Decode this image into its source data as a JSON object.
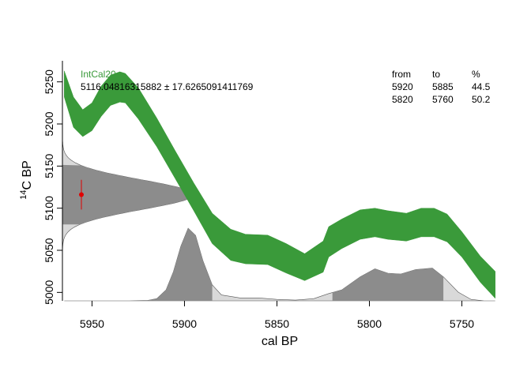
{
  "chart_data": {
    "type": "area",
    "calibration_curve": {
      "name": "IntCal20",
      "color": "#3a9a3a",
      "band_color": "#3a9a3a",
      "points": [
        {
          "x": 5965,
          "lo": 5232,
          "hi": 5263
        },
        {
          "x": 5960,
          "lo": 5196,
          "hi": 5232
        },
        {
          "x": 5955,
          "lo": 5185,
          "hi": 5217
        },
        {
          "x": 5950,
          "lo": 5192,
          "hi": 5225
        },
        {
          "x": 5945,
          "lo": 5209,
          "hi": 5245
        },
        {
          "x": 5940,
          "lo": 5222,
          "hi": 5258
        },
        {
          "x": 5935,
          "lo": 5226,
          "hi": 5262
        },
        {
          "x": 5932,
          "lo": 5225,
          "hi": 5260
        },
        {
          "x": 5925,
          "lo": 5206,
          "hi": 5243
        },
        {
          "x": 5915,
          "lo": 5173,
          "hi": 5207
        },
        {
          "x": 5905,
          "lo": 5135,
          "hi": 5168
        },
        {
          "x": 5895,
          "lo": 5097,
          "hi": 5130
        },
        {
          "x": 5885,
          "lo": 5058,
          "hi": 5094
        },
        {
          "x": 5875,
          "lo": 5038,
          "hi": 5075
        },
        {
          "x": 5867,
          "lo": 5034,
          "hi": 5069
        },
        {
          "x": 5855,
          "lo": 5033,
          "hi": 5068
        },
        {
          "x": 5845,
          "lo": 5023,
          "hi": 5058
        },
        {
          "x": 5835,
          "lo": 5014,
          "hi": 5046
        },
        {
          "x": 5825,
          "lo": 5024,
          "hi": 5061
        },
        {
          "x": 5822,
          "lo": 5042,
          "hi": 5078
        },
        {
          "x": 5815,
          "lo": 5052,
          "hi": 5087
        },
        {
          "x": 5805,
          "lo": 5063,
          "hi": 5098
        },
        {
          "x": 5797,
          "lo": 5066,
          "hi": 5100
        },
        {
          "x": 5790,
          "lo": 5063,
          "hi": 5097
        },
        {
          "x": 5780,
          "lo": 5061,
          "hi": 5094
        },
        {
          "x": 5772,
          "lo": 5066,
          "hi": 5100
        },
        {
          "x": 5765,
          "lo": 5066,
          "hi": 5100
        },
        {
          "x": 5758,
          "lo": 5060,
          "hi": 5093
        },
        {
          "x": 5750,
          "lo": 5042,
          "hi": 5072
        },
        {
          "x": 5740,
          "lo": 5012,
          "hi": 5043
        },
        {
          "x": 5732,
          "lo": 4993,
          "hi": 5025
        }
      ]
    },
    "measurement": {
      "label": "5116.04816315882 ± 17.6265091411769",
      "mean": 5116.04816315882,
      "sd": 17.6265091411769,
      "point_color": "#e00000"
    },
    "calibrated_distribution": {
      "color": "#888888",
      "points": [
        {
          "x": 5965,
          "d": 0
        },
        {
          "x": 5950,
          "d": 0
        },
        {
          "x": 5930,
          "d": 0
        },
        {
          "x": 5920,
          "d": 0.005
        },
        {
          "x": 5915,
          "d": 0.03
        },
        {
          "x": 5910,
          "d": 0.15
        },
        {
          "x": 5906,
          "d": 0.4
        },
        {
          "x": 5902,
          "d": 0.75
        },
        {
          "x": 5898,
          "d": 1.0
        },
        {
          "x": 5894,
          "d": 0.9
        },
        {
          "x": 5890,
          "d": 0.55
        },
        {
          "x": 5885,
          "d": 0.22
        },
        {
          "x": 5880,
          "d": 0.08
        },
        {
          "x": 5870,
          "d": 0.04
        },
        {
          "x": 5860,
          "d": 0.04
        },
        {
          "x": 5850,
          "d": 0.02
        },
        {
          "x": 5840,
          "d": 0.01
        },
        {
          "x": 5830,
          "d": 0.03
        },
        {
          "x": 5822,
          "d": 0.1
        },
        {
          "x": 5815,
          "d": 0.15
        },
        {
          "x": 5805,
          "d": 0.33
        },
        {
          "x": 5797,
          "d": 0.44
        },
        {
          "x": 5790,
          "d": 0.38
        },
        {
          "x": 5783,
          "d": 0.37
        },
        {
          "x": 5775,
          "d": 0.43
        },
        {
          "x": 5766,
          "d": 0.45
        },
        {
          "x": 5760,
          "d": 0.33
        },
        {
          "x": 5752,
          "d": 0.12
        },
        {
          "x": 5745,
          "d": 0.02
        },
        {
          "x": 5738,
          "d": 0
        },
        {
          "x": 5732,
          "d": 0
        }
      ]
    },
    "hpd_ranges": {
      "headers": [
        "from",
        "to",
        "%"
      ],
      "rows": [
        [
          "5920",
          "5885",
          "44.5"
        ],
        [
          "5820",
          "5760",
          "50.2"
        ]
      ]
    },
    "xlabel": "cal BP",
    "ylabel": "C BP",
    "ylabel_superscript": "14",
    "x_ticks": [
      5950,
      5900,
      5850,
      5800,
      5750
    ],
    "y_ticks": [
      5000,
      5050,
      5100,
      5150,
      5200,
      5250
    ],
    "xlim": [
      5966,
      5731
    ],
    "ylim": [
      4990,
      5275
    ],
    "x_reversed": true,
    "grid": false,
    "legend": "top-left"
  }
}
